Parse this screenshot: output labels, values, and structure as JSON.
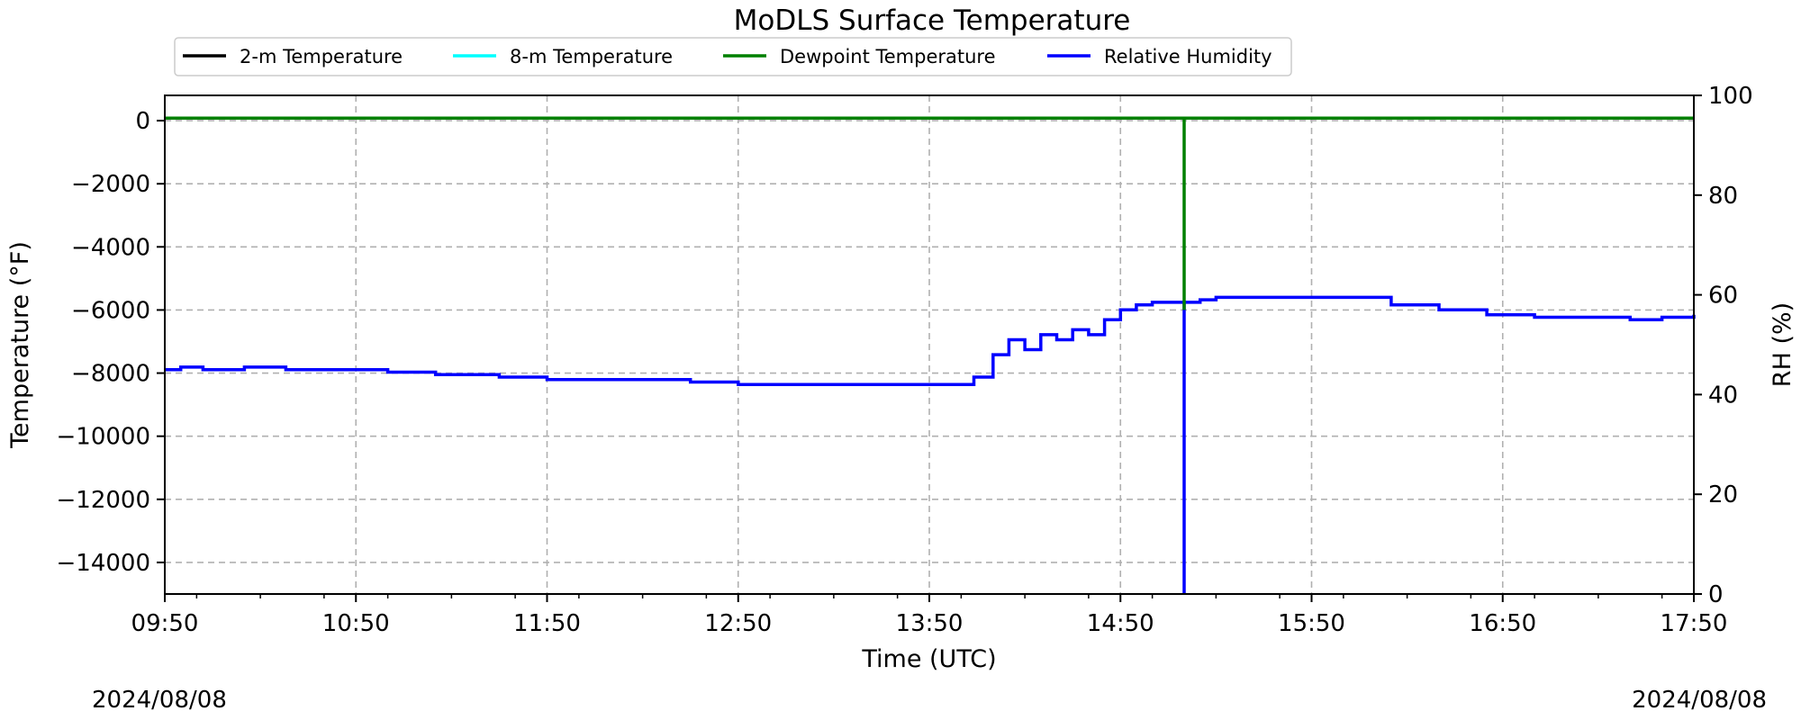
{
  "chart_data": {
    "type": "line",
    "title": "MoDLS Surface Temperature",
    "xlabel": "Time (UTC)",
    "ylabel": "Temperature ($^\\circ$F)",
    "ylabel_display": "Temperature (°F)",
    "y2label": "RH (%)",
    "xlim": [
      "09:50",
      "17:50"
    ],
    "ylim": [
      -15000,
      800
    ],
    "y2lim": [
      0,
      100
    ],
    "x_ticks": [
      "09:50",
      "10:50",
      "11:50",
      "12:50",
      "13:50",
      "14:50",
      "15:50",
      "16:50",
      "17:50"
    ],
    "y_ticks": [
      0,
      -2000,
      -4000,
      -6000,
      -8000,
      -10000,
      -12000,
      -14000
    ],
    "y2_ticks": [
      100,
      80,
      60,
      40,
      20,
      0
    ],
    "grid": true,
    "legend_position": "top-left",
    "date_left": "2024/08/08",
    "date_right": "2024/08/08",
    "series": [
      {
        "name": "2-m Temperature",
        "color": "#000000",
        "axis": "left",
        "x": [
          "09:50",
          "17:50"
        ],
        "y": [
          80,
          80
        ]
      },
      {
        "name": "8-m Temperature",
        "color": "#00ffff",
        "axis": "left",
        "x": [
          "09:50",
          "17:50"
        ],
        "y": [
          80,
          80
        ]
      },
      {
        "name": "Dewpoint Temperature",
        "color": "#008000",
        "axis": "left",
        "x": [
          "09:50",
          "15:10",
          "15:10",
          "15:10",
          "17:50"
        ],
        "y": [
          80,
          80,
          -6000,
          80,
          80
        ]
      },
      {
        "name": "Relative Humidity",
        "color": "#0000ff",
        "axis": "right",
        "x": [
          "09:50",
          "09:55",
          "10:02",
          "10:15",
          "10:28",
          "10:40",
          "11:00",
          "11:15",
          "11:35",
          "11:50",
          "12:10",
          "12:35",
          "12:50",
          "13:10",
          "13:40",
          "14:00",
          "14:04",
          "14:10",
          "14:15",
          "14:20",
          "14:25",
          "14:30",
          "14:35",
          "14:40",
          "14:45",
          "14:50",
          "14:55",
          "15:00",
          "15:10",
          "15:10",
          "15:10",
          "15:15",
          "15:20",
          "15:30",
          "15:45",
          "16:00",
          "16:15",
          "16:30",
          "16:45",
          "17:00",
          "17:15",
          "17:30",
          "17:40",
          "17:50"
        ],
        "y": [
          45,
          45.5,
          45,
          45.5,
          45,
          45,
          44.5,
          44,
          43.5,
          43,
          43,
          42.5,
          42,
          42,
          42,
          42,
          43.5,
          48,
          51,
          49,
          52,
          51,
          53,
          52,
          55,
          57,
          58,
          58.5,
          58.5,
          0,
          58.5,
          59,
          59.5,
          59.5,
          59.5,
          59.5,
          58,
          57,
          56,
          55.5,
          55.5,
          55,
          55.5,
          56
        ]
      }
    ]
  }
}
